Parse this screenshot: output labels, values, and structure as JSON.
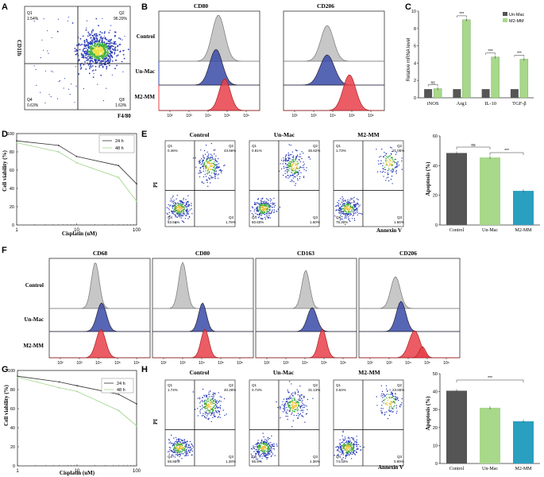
{
  "panels": {
    "A": {
      "letter": "A",
      "ylabel": "CD11b",
      "xlabel": "F4/80",
      "q1": "Q1",
      "q1v": "1.54%",
      "q2": "Q2",
      "q2v": "96.20%",
      "q3": "Q3",
      "q3v": "1.63%",
      "q4": "Q4",
      "q4v": "0.63%"
    },
    "B": {
      "letter": "B",
      "title1": "CD80",
      "title2": "CD206",
      "rows": [
        "Control",
        "Un-Mac",
        "M2-MM"
      ]
    },
    "C": {
      "letter": "C",
      "ylabel": "Relative mRNA level",
      "legend": [
        "Un-Mac",
        "M2-MM"
      ],
      "sig": [
        "ns",
        "***",
        "***",
        "***"
      ]
    },
    "D": {
      "letter": "D",
      "ylabel": "Cell viability (%)",
      "xlabel": "Cisplatin (uM)",
      "legend": [
        "24 h",
        "48 h"
      ]
    },
    "E": {
      "letter": "E",
      "titles": [
        "Control",
        "Un-Mac",
        "M2-MM"
      ],
      "xlabel": "Annexin V",
      "ylabel": "PI",
      "q": [
        [
          "Q1",
          "0.46%",
          "Q2",
          "43.66%",
          "Q4",
          "53.66%",
          "Q3",
          "1.76%"
        ],
        [
          "Q1",
          "0.81%",
          "Q2",
          "36.62%",
          "Q4",
          "60.60%",
          "Q3",
          "1.60%"
        ],
        [
          "Q1",
          "1.73%",
          "Q2",
          "21.05%",
          "Q4",
          "75.30%",
          "Q3",
          "1.66%"
        ]
      ],
      "bar_ylabel": "Apoptosis (%)",
      "sig": [
        "ns",
        "***"
      ]
    },
    "F": {
      "letter": "F",
      "titles": [
        "CD68",
        "CD80",
        "CD163",
        "CD206"
      ],
      "rows": [
        "Control",
        "Un-Mac",
        "M2-MM"
      ]
    },
    "G": {
      "letter": "G",
      "ylabel": "Cell viability (%)",
      "xlabel": "Cisplatin (uM)",
      "legend": [
        "24 h",
        "48 h"
      ]
    },
    "H": {
      "letter": "H",
      "titles": [
        "Control",
        "Un-Mac",
        "M2-MM"
      ],
      "xlabel": "Annexin V",
      "ylabel": "PI",
      "q": [
        [
          "Q1",
          "1.74%",
          "Q2",
          "40.28%",
          "Q4",
          "55.65%",
          "Q3",
          "1.28%"
        ],
        [
          "Q1",
          "0.73%",
          "Q2",
          "31.13%",
          "Q4",
          "66.9%",
          "Q3",
          "1.36%"
        ],
        [
          "Q1",
          "0.64%",
          "Q2",
          "23.65%",
          "Q4",
          "74.03%",
          "Q3",
          "0.89%"
        ]
      ],
      "bar_ylabel": "Apoptosis (%)",
      "sig": [
        "***"
      ]
    }
  },
  "colors": {
    "dark": "#555555",
    "green": "#a8d88a",
    "teal": "#2a9fc0",
    "blue": "#3a4aa8",
    "red": "#e8404a",
    "grey": "#bdbdbd"
  },
  "chart_data": [
    {
      "type": "bar",
      "id": "C",
      "title": "",
      "ylabel": "Relative mRNA level",
      "categories": [
        "iNOS",
        "Arg1",
        "IL-10",
        "TGF-β"
      ],
      "ylim": [
        0,
        10
      ],
      "series": [
        {
          "name": "Un-Mac",
          "values": [
            1,
            1,
            1,
            1
          ]
        },
        {
          "name": "M2-MM",
          "values": [
            1.05,
            9,
            4.7,
            4.45
          ]
        }
      ]
    },
    {
      "type": "line",
      "id": "D",
      "xlabel": "Cisplatin (uM)",
      "ylabel": "Cell viability (%)",
      "xscale": "log",
      "xlim": [
        1,
        100
      ],
      "ylim": [
        0,
        100
      ],
      "x": [
        1,
        5,
        10,
        50,
        100
      ],
      "series": [
        {
          "name": "24 h",
          "values": [
            92,
            87,
            75,
            65,
            45
          ]
        },
        {
          "name": "48 h",
          "values": [
            90,
            80,
            68,
            52,
            26
          ]
        }
      ],
      "xticks": [
        "1",
        "10",
        "100"
      ],
      "yticks": [
        "0",
        "20",
        "40",
        "60",
        "80",
        "100"
      ]
    },
    {
      "type": "bar",
      "id": "E",
      "ylabel": "Apoptosis (%)",
      "categories": [
        "Control",
        "Un-Mac",
        "M2-MM"
      ],
      "values": [
        48.5,
        45.5,
        23
      ],
      "ylim": [
        0,
        60
      ],
      "yticks": [
        "0",
        "20",
        "40",
        "60"
      ]
    },
    {
      "type": "line",
      "id": "G",
      "xlabel": "Cisplatin (uM)",
      "ylabel": "Cell viability (%)",
      "xscale": "log",
      "xlim": [
        1,
        100
      ],
      "ylim": [
        0,
        100
      ],
      "x": [
        1,
        5,
        10,
        50,
        100
      ],
      "series": [
        {
          "name": "24 h",
          "values": [
            94,
            88,
            84,
            75,
            65
          ]
        },
        {
          "name": "48 h",
          "values": [
            93,
            82,
            78,
            58,
            42
          ]
        }
      ],
      "xticks": [
        "1",
        "10",
        "100"
      ],
      "yticks": [
        "0",
        "20",
        "40",
        "60",
        "80",
        "100"
      ]
    },
    {
      "type": "bar",
      "id": "H",
      "ylabel": "Apoptosis (%)",
      "categories": [
        "Control",
        "Un-Mac",
        "M2-MM"
      ],
      "values": [
        40.5,
        31,
        23.5
      ],
      "ylim": [
        0,
        50
      ],
      "yticks": [
        "0",
        "10",
        "20",
        "30",
        "40",
        "50"
      ]
    }
  ]
}
